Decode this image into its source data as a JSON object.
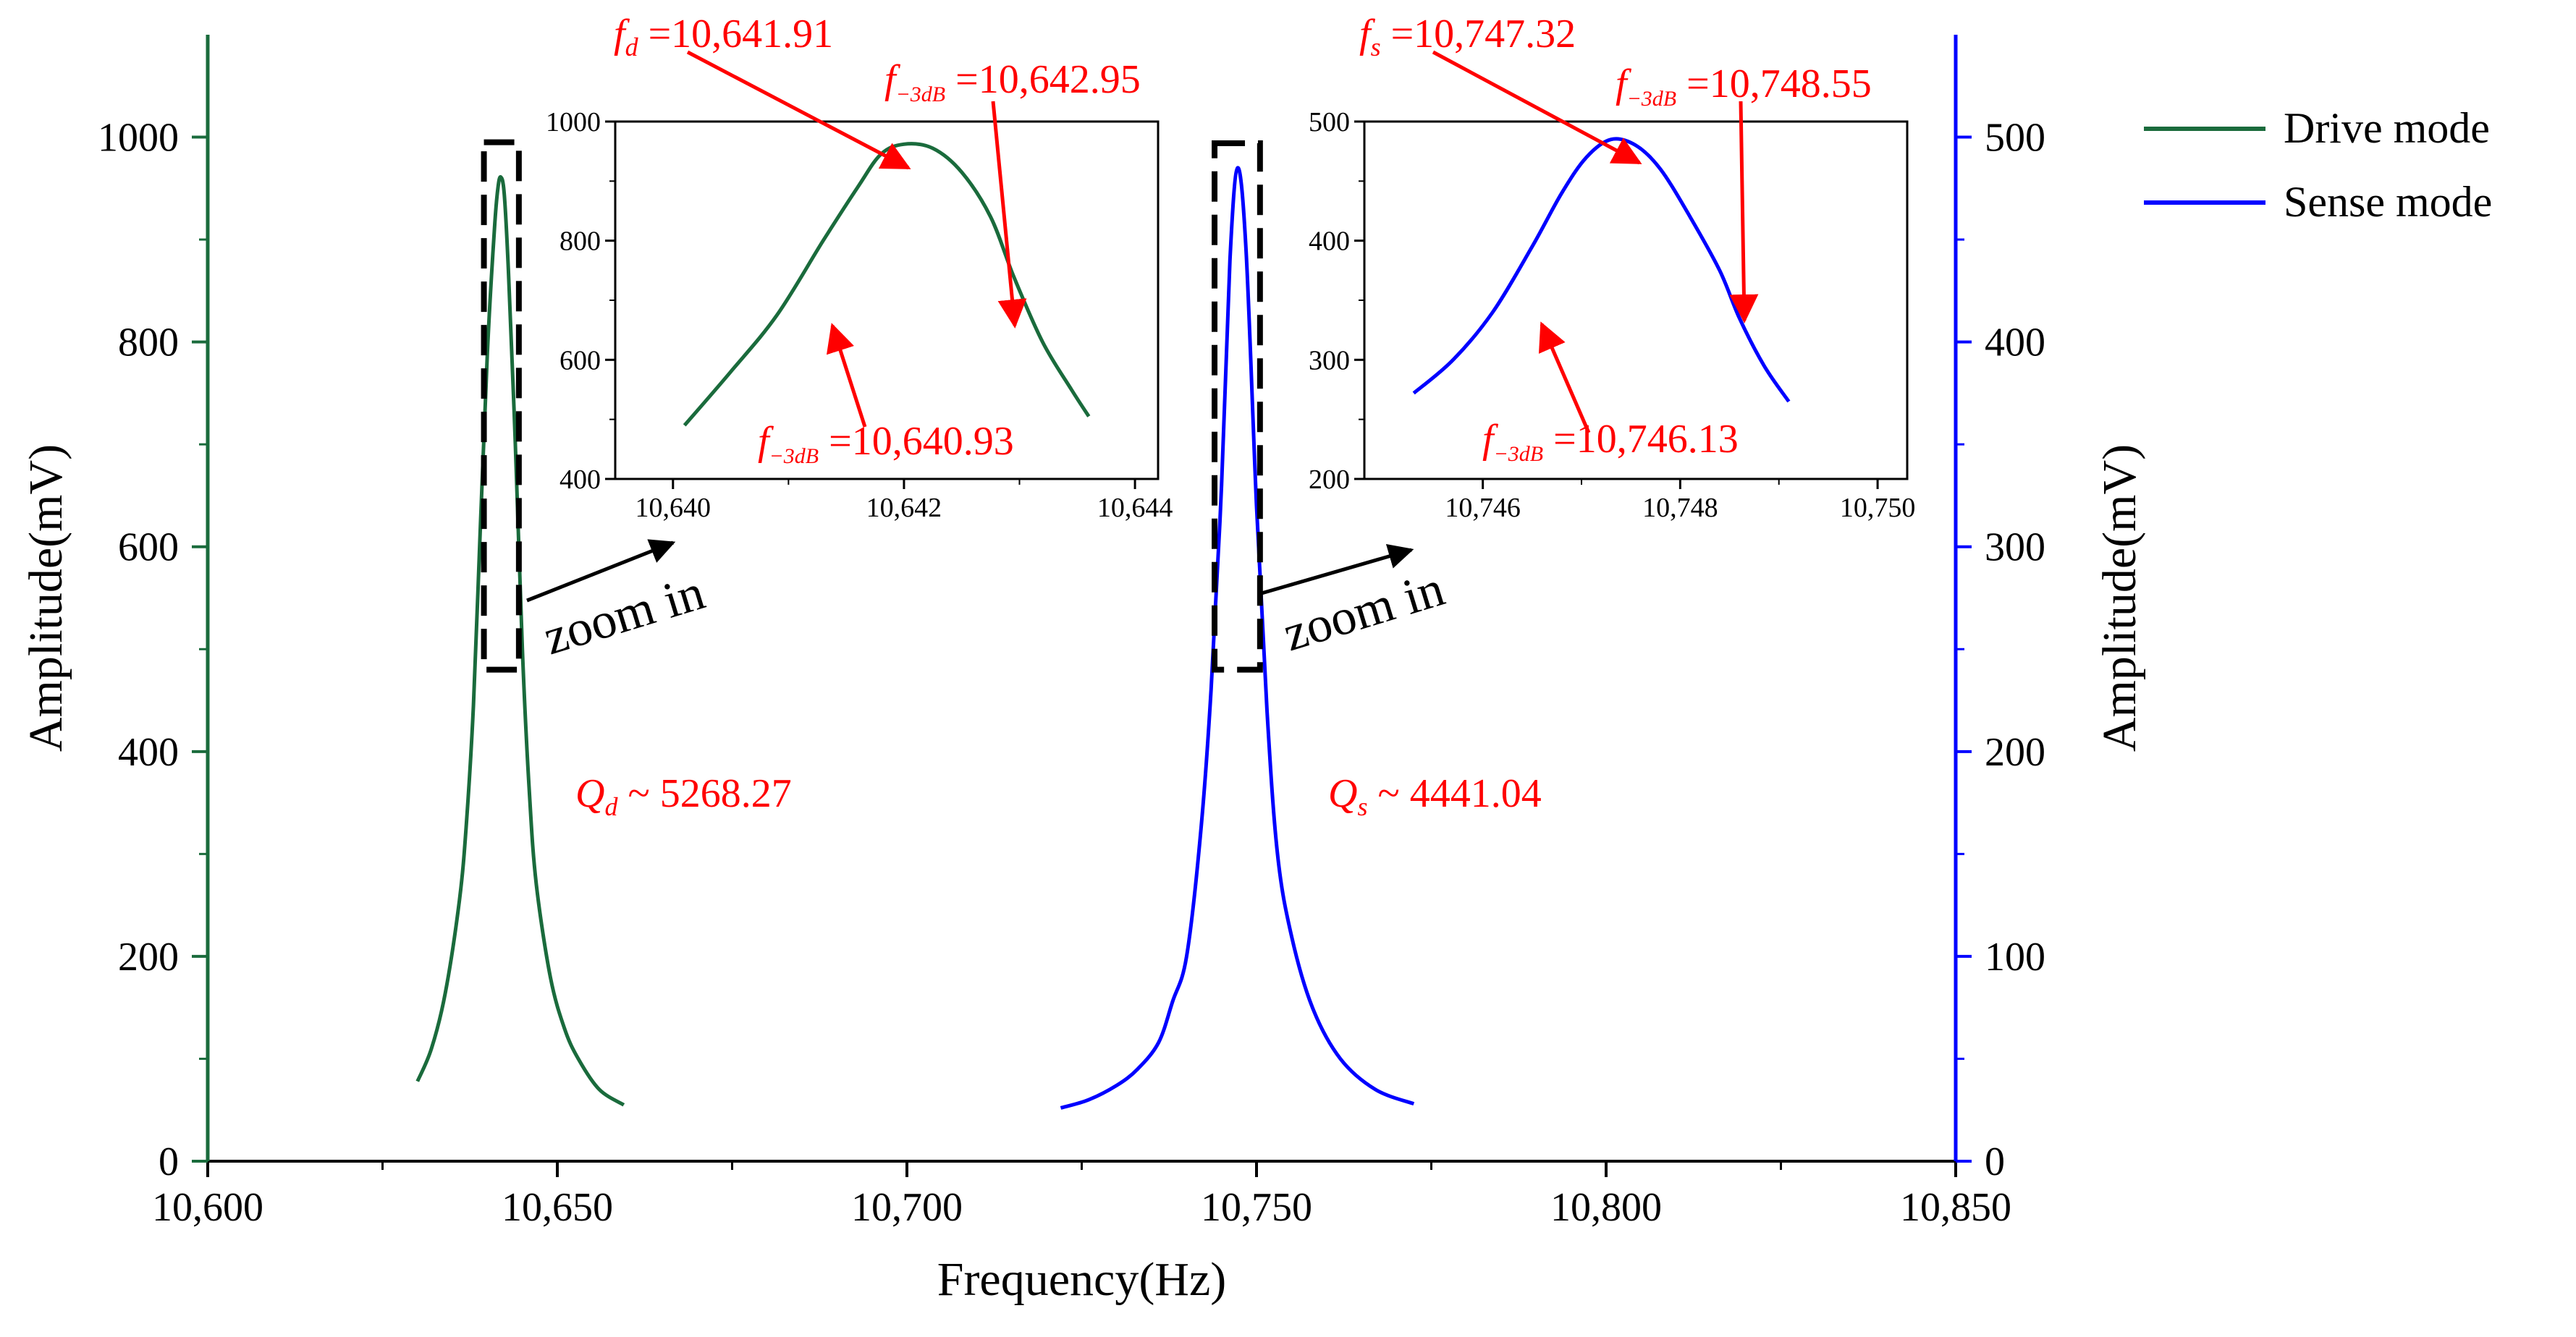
{
  "chart_data": [
    {
      "id": "main",
      "type": "line",
      "xlabel": "Frequency(Hz)",
      "ylabel_left": "Amplitude(mV)",
      "ylabel_right": "Amplitude(mV)",
      "xlim": [
        10600,
        10850
      ],
      "ylim_left": [
        0,
        1100
      ],
      "ylim_right": [
        0,
        550
      ],
      "x_ticks": [
        10600,
        10650,
        10700,
        10750,
        10800,
        10850
      ],
      "x_tick_labels": [
        "10,600",
        "10,650",
        "10,700",
        "10,750",
        "10,800",
        "10,850"
      ],
      "y_left_ticks": [
        0,
        200,
        400,
        600,
        800,
        1000
      ],
      "y_left_tick_labels": [
        "0",
        "200",
        "400",
        "600",
        "800",
        "1000"
      ],
      "y_right_ticks": [
        0,
        100,
        200,
        300,
        400,
        500
      ],
      "y_right_tick_labels": [
        "0",
        "100",
        "200",
        "300",
        "400",
        "500"
      ],
      "grid": false,
      "legend_position": "top-right",
      "series": [
        {
          "name": "Drive mode",
          "axis": "left",
          "color": "#1a6b3c",
          "x": [
            10630,
            10632,
            10634,
            10636,
            10637,
            10638,
            10639,
            10640,
            10641,
            10641.5,
            10641.9,
            10642.4,
            10643,
            10644,
            10645,
            10646,
            10647,
            10649,
            10651,
            10653,
            10656,
            10659.5
          ],
          "y": [
            78,
            110,
            165,
            255,
            330,
            445,
            620,
            790,
            910,
            950,
            961,
            945,
            870,
            700,
            500,
            360,
            270,
            180,
            130,
            100,
            70,
            55
          ]
        },
        {
          "name": "Sense mode",
          "axis": "right",
          "color": "#0000ff",
          "x": [
            10722,
            10726,
            10730,
            10733,
            10736,
            10738,
            10740,
            10742,
            10743.5,
            10745,
            10746.2,
            10747.3,
            10748.5,
            10750,
            10751.5,
            10753,
            10755,
            10758,
            10762,
            10767,
            10772.5
          ],
          "y": [
            26,
            30,
            37,
            45,
            58,
            78,
            100,
            160,
            230,
            330,
            440,
            485,
            445,
            320,
            220,
            150,
            110,
            75,
            50,
            35,
            28
          ]
        }
      ],
      "annotations": {
        "qd_label": "Q",
        "qd_sub": "d",
        "qd_value": " ~ 5268.27",
        "qs_label": "Q",
        "qs_sub": "s",
        "qs_value": " ~ 4441.04",
        "zoom_label_1": "zoom in",
        "zoom_label_2": "zoom in"
      },
      "zoom_boxes": [
        {
          "x": [
            10639.5,
            10644.5
          ],
          "y": [
            480,
            995
          ],
          "axis": "left"
        },
        {
          "x": [
            10744,
            10750.5
          ],
          "y": [
            240,
            497
          ],
          "axis": "right"
        }
      ]
    },
    {
      "id": "inset_drive",
      "type": "line",
      "xlim": [
        10639.5,
        10644.2
      ],
      "ylim": [
        400,
        1000
      ],
      "x_ticks": [
        10640,
        10642,
        10644
      ],
      "x_tick_labels": [
        "10,640",
        "10,642",
        "10,644"
      ],
      "y_ticks": [
        400,
        600,
        800,
        1000
      ],
      "y_tick_labels": [
        "400",
        "600",
        "800",
        "1000"
      ],
      "series": [
        {
          "name": "",
          "color": "#1a6b3c",
          "x": [
            10640.1,
            10640.5,
            10640.9,
            10641.3,
            10641.6,
            10641.8,
            10642.0,
            10642.25,
            10642.5,
            10642.75,
            10642.95,
            10643.2,
            10643.45,
            10643.6
          ],
          "y": [
            490,
            580,
            675,
            800,
            890,
            945,
            962,
            955,
            915,
            840,
            740,
            630,
            550,
            505
          ]
        }
      ],
      "annotations": {
        "fd_var": "f",
        "fd_sub": "d",
        "fd_value": " =10,641.91",
        "f3_upper_var": "f",
        "f3_upper_sub": "−3dB",
        "f3_upper_value": " =10,642.95",
        "f3_lower_var": "f",
        "f3_lower_sub": "−3dB",
        "f3_lower_value": " =10,640.93"
      },
      "markers": [
        {
          "x": 10641.91,
          "y": 962
        },
        {
          "x": 10642.95,
          "y": 680
        },
        {
          "x": 10640.93,
          "y": 680
        }
      ]
    },
    {
      "id": "inset_sense",
      "type": "line",
      "xlim": [
        10744.8,
        10750.3
      ],
      "ylim": [
        200,
        500
      ],
      "x_ticks": [
        10746,
        10748,
        10750
      ],
      "x_tick_labels": [
        "10,746",
        "10,748",
        "10,750"
      ],
      "y_ticks": [
        200,
        300,
        400,
        500
      ],
      "y_tick_labels": [
        "200",
        "300",
        "400",
        "500"
      ],
      "series": [
        {
          "name": "",
          "color": "#0000ff",
          "x": [
            10745.3,
            10745.7,
            10746.1,
            10746.5,
            10746.8,
            10747.05,
            10747.3,
            10747.55,
            10747.8,
            10748.1,
            10748.4,
            10748.6,
            10748.85,
            10749.1
          ],
          "y": [
            272,
            300,
            340,
            395,
            440,
            470,
            485,
            480,
            460,
            420,
            375,
            335,
            295,
            265
          ]
        }
      ],
      "annotations": {
        "fs_var": "f",
        "fs_sub": "s",
        "fs_value": " =10,747.32",
        "f3_upper_var": "f",
        "f3_upper_sub": "−3dB",
        "f3_upper_value": " =10,748.55",
        "f3_lower_var": "f",
        "f3_lower_sub": "−3dB",
        "f3_lower_value": " =10,746.13"
      },
      "markers": [
        {
          "x": 10747.32,
          "y": 485
        },
        {
          "x": 10748.55,
          "y": 345
        },
        {
          "x": 10746.13,
          "y": 345
        }
      ]
    }
  ],
  "colors": {
    "drive": "#1a6b3c",
    "sense": "#0000ff",
    "annotation": "#ff0000",
    "axis": "#000000"
  }
}
